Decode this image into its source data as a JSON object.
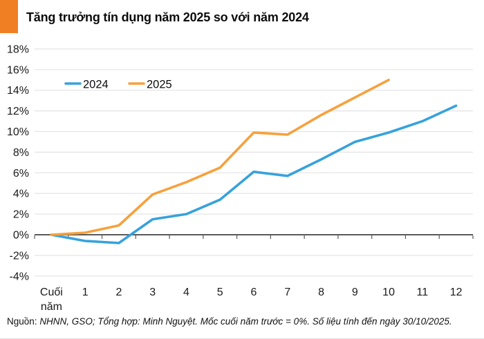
{
  "title": "Tăng trưởng tín dụng năm 2025 so với năm 2024",
  "footer": {
    "source_label": "Nguồn:",
    "note": "NHNN, GSO; Tổng hợp: Minh Nguyệt. Mốc cuối năm trước = 0%.  Số liệu tính đến ngày 30/10/2025."
  },
  "colors": {
    "accent_orange": "#F07F23",
    "line_2024": "#36A2DC",
    "line_2025": "#F6A13C",
    "gridline": "#E3E3E3",
    "axis": "#595959",
    "label_text": "#1A1A1A"
  },
  "legend": [
    {
      "label": "2024",
      "color": "#36A2DC"
    },
    {
      "label": "2025",
      "color": "#F6A13C"
    }
  ],
  "chart_data": {
    "type": "line",
    "categories": [
      "Cuối năm",
      "1",
      "2",
      "3",
      "4",
      "5",
      "6",
      "7",
      "8",
      "9",
      "10",
      "11",
      "12"
    ],
    "series": [
      {
        "name": "2024",
        "color": "#36A2DC",
        "values": [
          0,
          -0.6,
          -0.8,
          1.5,
          2.0,
          3.4,
          6.1,
          5.7,
          7.3,
          9.0,
          9.9,
          11.0,
          12.5
        ]
      },
      {
        "name": "2025",
        "color": "#F6A13C",
        "values": [
          0,
          0.2,
          0.9,
          3.9,
          5.1,
          6.5,
          9.9,
          9.7,
          11.6,
          13.3,
          15.0,
          null,
          null
        ]
      }
    ],
    "title": "Tăng trưởng tín dụng năm 2025 so với năm 2024",
    "xlabel": "",
    "ylabel": "",
    "ylim": [
      -4,
      18
    ],
    "ytick_step": 2,
    "ytick_suffix": "%",
    "grid": true,
    "baseline": 0,
    "legend_position": "top-left-inside"
  }
}
